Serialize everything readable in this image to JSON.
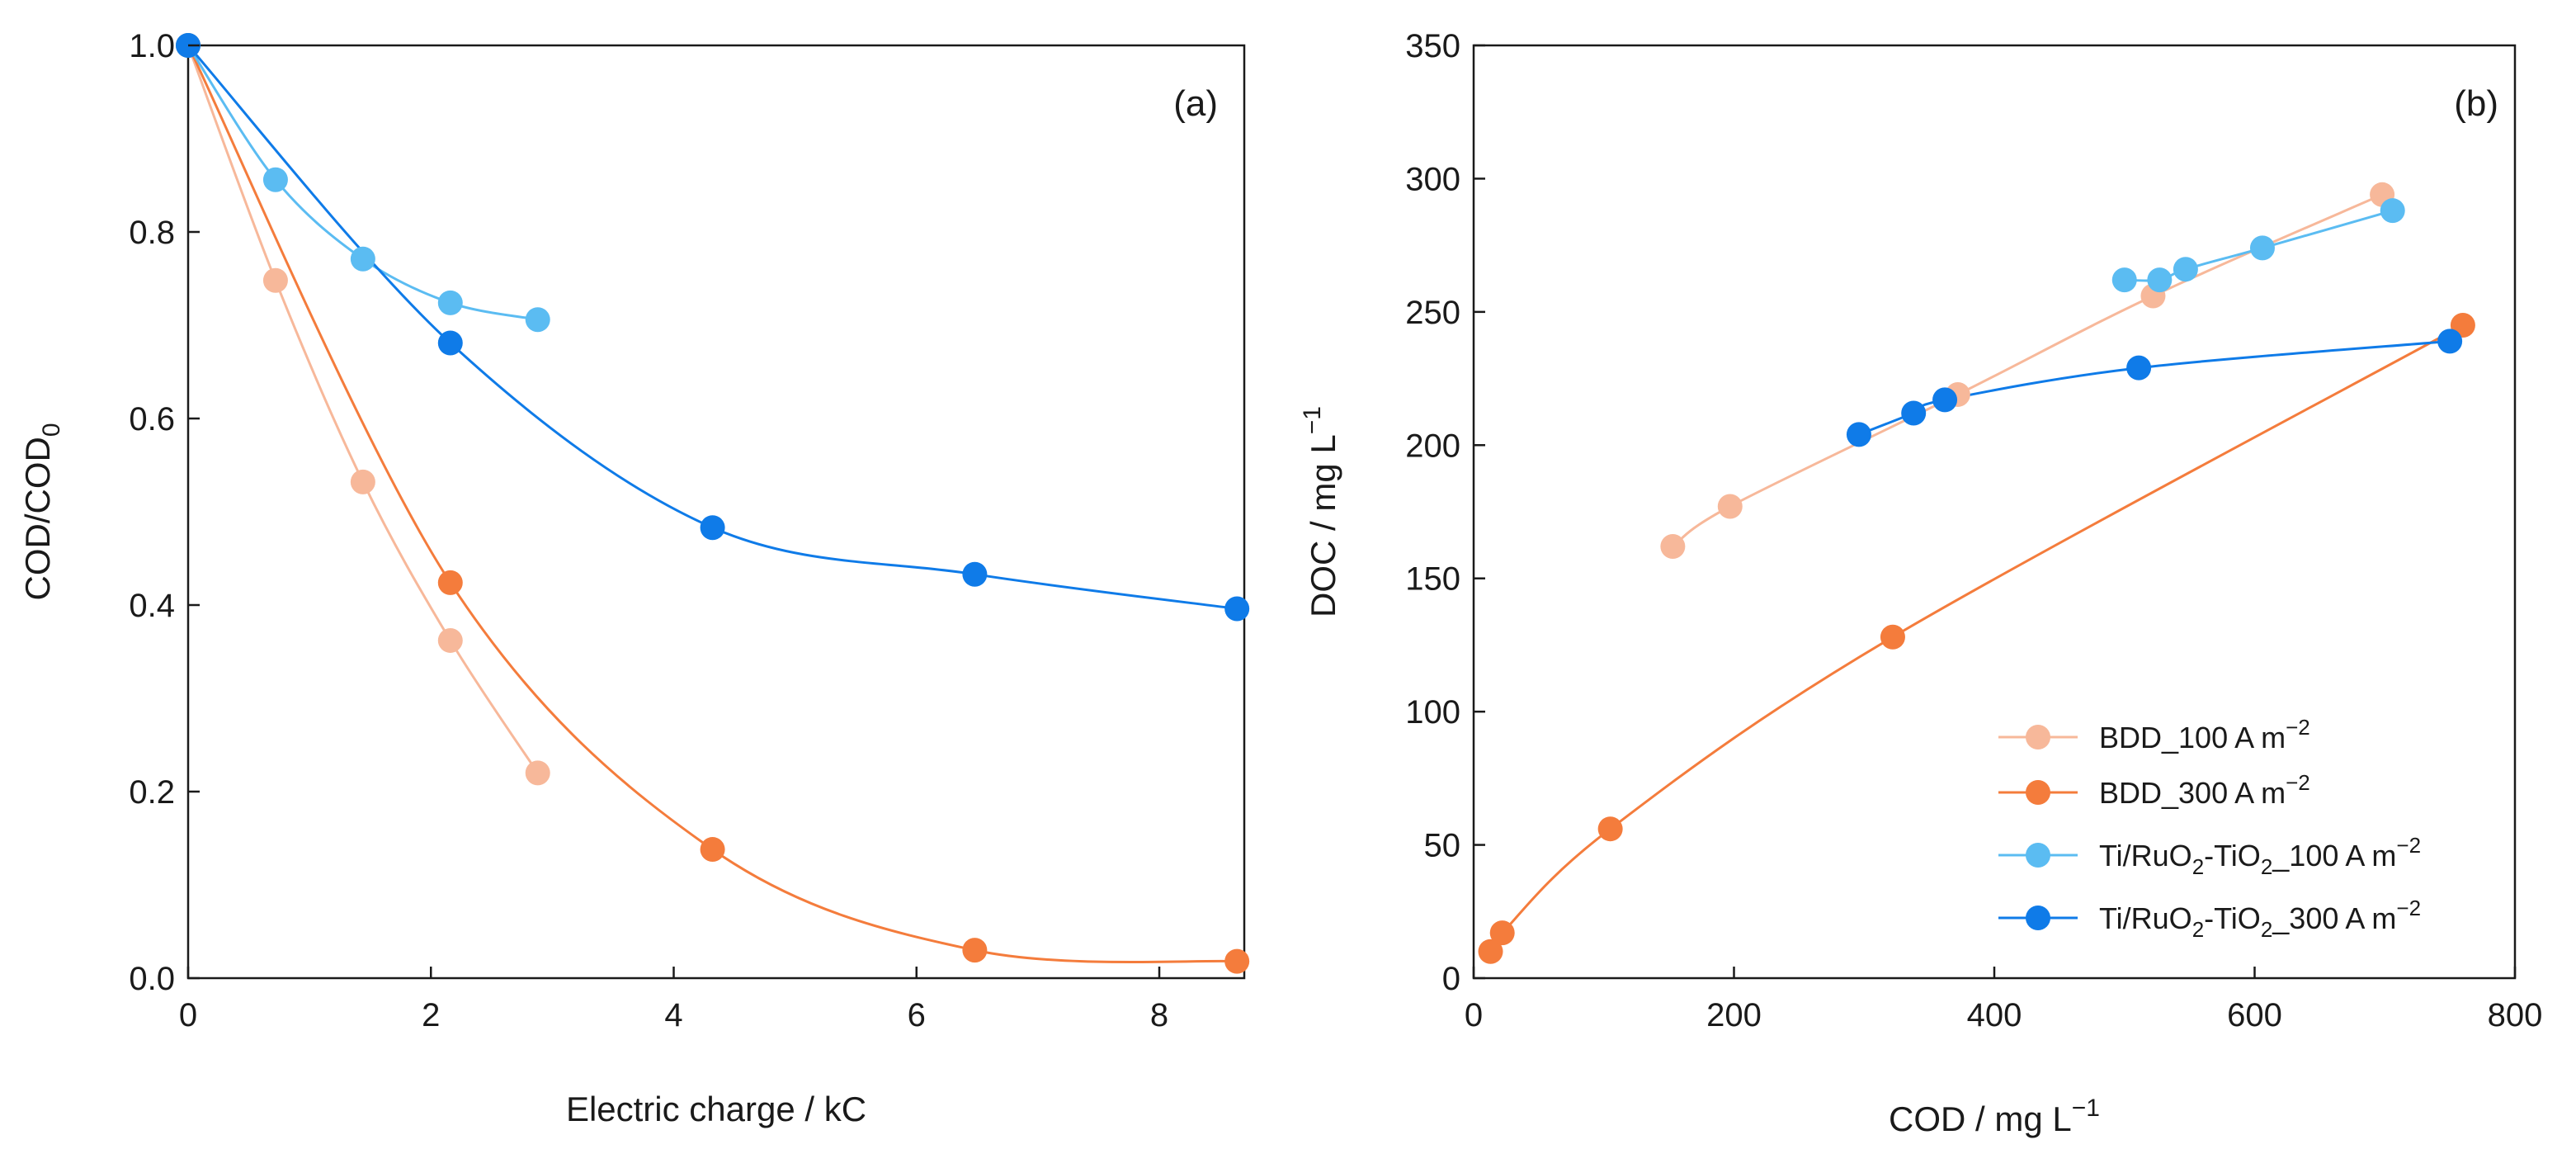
{
  "chart_data": [
    {
      "id": "a",
      "type": "line",
      "panel_label": "(a)",
      "xlabel": "Electric charge / kC",
      "ylabel": "COD/COD0",
      "ylabel_main": "COD/COD",
      "ylabel_sub": "0",
      "xlim": [
        0,
        8.7
      ],
      "ylim": [
        0,
        1.0
      ],
      "xticks": [
        0,
        2,
        4,
        6,
        8
      ],
      "yticks": [
        0.0,
        0.2,
        0.4,
        0.6,
        0.8,
        1.0
      ],
      "xtick_labels": [
        "0",
        "2",
        "4",
        "6",
        "8"
      ],
      "ytick_labels": [
        "0.0",
        "0.2",
        "0.4",
        "0.6",
        "0.8",
        "1.0"
      ],
      "grid": false,
      "series": [
        {
          "name": "BDD_100 A m−2",
          "color": "#f7b89a",
          "points": [
            [
              0,
              1.0
            ],
            [
              0.72,
              0.748
            ],
            [
              1.44,
              0.532
            ],
            [
              2.16,
              0.362
            ],
            [
              2.88,
              0.22
            ]
          ]
        },
        {
          "name": "BDD_300 A m−2",
          "color": "#f47c3c",
          "points": [
            [
              0,
              1.0
            ],
            [
              2.16,
              0.424
            ],
            [
              4.32,
              0.138
            ],
            [
              6.48,
              0.03
            ],
            [
              8.64,
              0.018
            ]
          ]
        },
        {
          "name": "Ti/RuO2-TiO2_100 A m−2",
          "color": "#5bbcf2",
          "points": [
            [
              0,
              1.0
            ],
            [
              0.72,
              0.856
            ],
            [
              1.44,
              0.771
            ],
            [
              2.16,
              0.724
            ],
            [
              2.88,
              0.706
            ]
          ]
        },
        {
          "name": "Ti/RuO2-TiO2_300 A m−2",
          "color": "#0f7be8",
          "points": [
            [
              0,
              1.0
            ],
            [
              2.16,
              0.681
            ],
            [
              4.32,
              0.483
            ],
            [
              6.48,
              0.433
            ],
            [
              8.64,
              0.396
            ]
          ]
        }
      ]
    },
    {
      "id": "b",
      "type": "line",
      "panel_label": "(b)",
      "xlabel": "COD / mg L−1",
      "xlabel_main": "COD / mg L",
      "xlabel_sup": "−1",
      "ylabel": "DOC / mg L−1",
      "ylabel_main": "DOC / mg L",
      "ylabel_sup": "−1",
      "xlim": [
        0,
        800
      ],
      "ylim": [
        0,
        350
      ],
      "xticks": [
        0,
        200,
        400,
        600,
        800
      ],
      "yticks": [
        0,
        50,
        100,
        150,
        200,
        250,
        300,
        350
      ],
      "xtick_labels": [
        "0",
        "200",
        "400",
        "600",
        "800"
      ],
      "ytick_labels": [
        "0",
        "50",
        "100",
        "150",
        "200",
        "250",
        "300",
        "350"
      ],
      "grid": false,
      "legend_position": "bottom-right",
      "series": [
        {
          "name": "BDD_100 A m−2",
          "color": "#f7b89a",
          "points": [
            [
              153,
              162
            ],
            [
              197,
              177
            ],
            [
              372,
              219
            ],
            [
              522,
              256
            ],
            [
              698,
              294
            ]
          ]
        },
        {
          "name": "BDD_300 A m−2",
          "color": "#f47c3c",
          "points": [
            [
              13,
              10
            ],
            [
              22,
              17
            ],
            [
              105,
              56
            ],
            [
              322,
              128
            ],
            [
              760,
              245
            ]
          ]
        },
        {
          "name": "Ti/RuO2-TiO2_100 A m−2",
          "color": "#5bbcf2",
          "points": [
            [
              500,
              262
            ],
            [
              527,
              262
            ],
            [
              547,
              266
            ],
            [
              606,
              274
            ],
            [
              706,
              288
            ]
          ]
        },
        {
          "name": "Ti/RuO2-TiO2_300 A m−2",
          "color": "#0f7be8",
          "points": [
            [
              296,
              204
            ],
            [
              338,
              212
            ],
            [
              362,
              217
            ],
            [
              511,
              229
            ],
            [
              750,
              239
            ]
          ]
        }
      ]
    }
  ],
  "legend": [
    {
      "prefix": "BDD_100 A m",
      "sup": "−2",
      "color": "#f7b89a"
    },
    {
      "prefix": "BDD_300 A m",
      "sup": "−2",
      "color": "#f47c3c"
    },
    {
      "prefix": "Ti/RuO",
      "sub1": "2",
      "mid": "-TiO",
      "sub2": "2",
      "suffix": "_100 A m",
      "sup": "−2",
      "color": "#5bbcf2"
    },
    {
      "prefix": "Ti/RuO",
      "sub1": "2",
      "mid": "-TiO",
      "sub2": "2",
      "suffix": "_300 A m",
      "sup": "−2",
      "color": "#0f7be8"
    }
  ]
}
